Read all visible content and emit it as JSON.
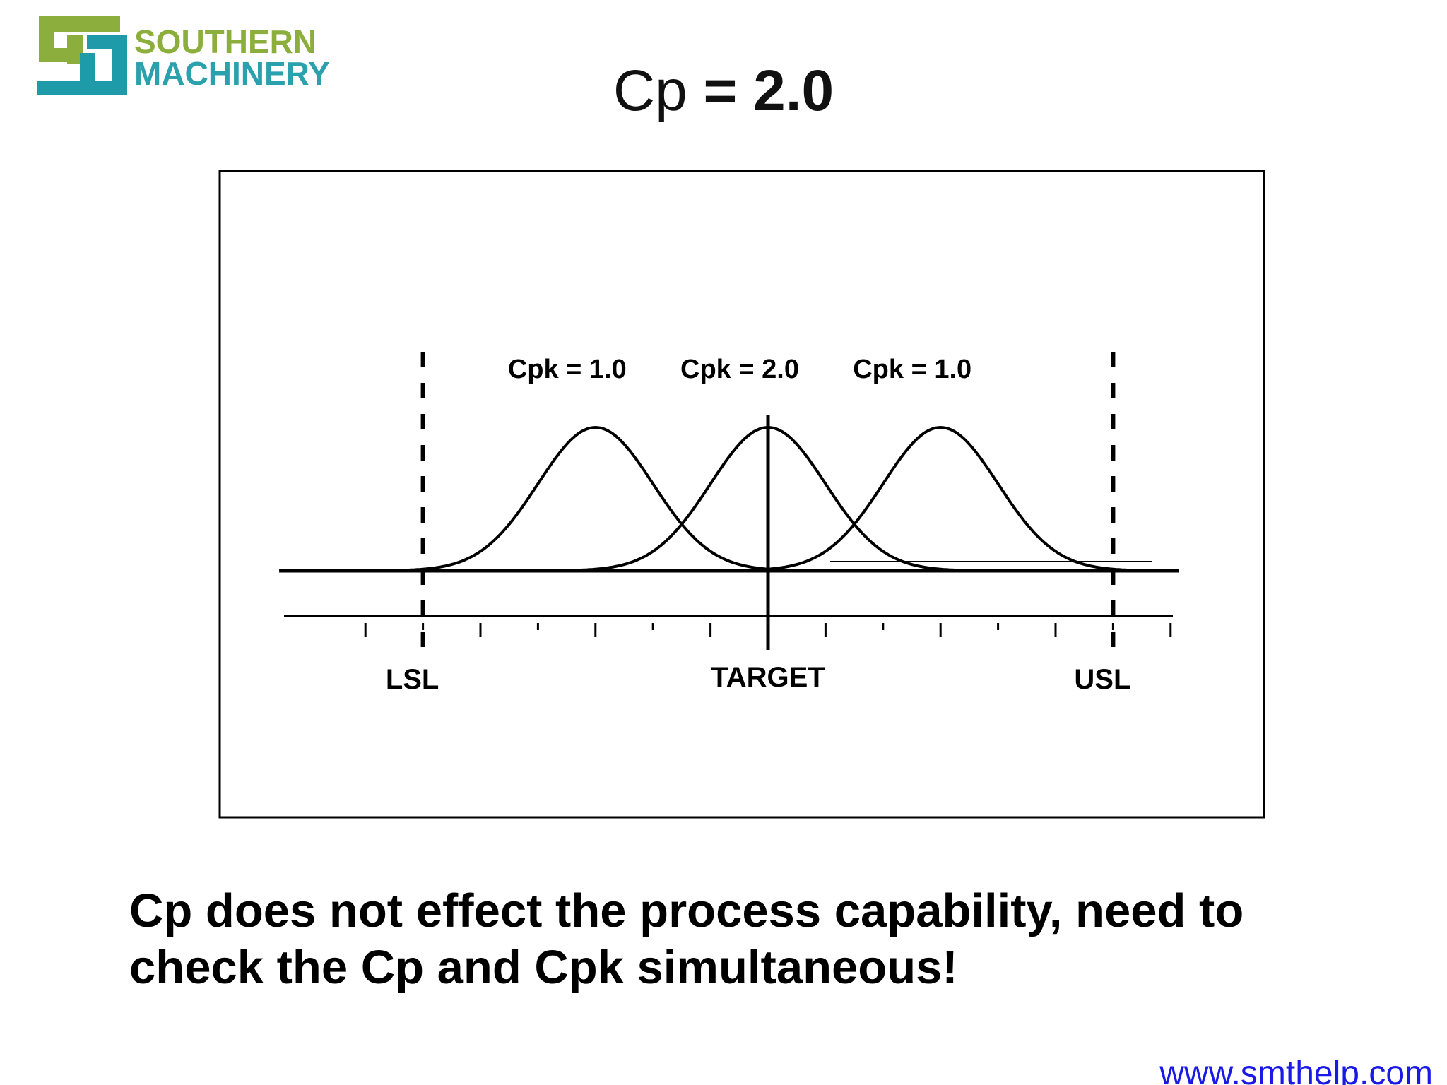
{
  "logo": {
    "line1": "SOUTHERN",
    "line2": "MACHINERY",
    "text_color": "#2aa1ad",
    "mark_green": "#8cae3c",
    "mark_teal": "#1f9aa8"
  },
  "title": {
    "prefix": "Cp ",
    "value": "= 2.0"
  },
  "diagram": {
    "curves": [
      {
        "label": "Cpk = 1.0",
        "mean": -3,
        "sd": 1
      },
      {
        "label": "Cpk = 2.0",
        "mean": 0,
        "sd": 1
      },
      {
        "label": "Cpk = 1.0",
        "mean": 3,
        "sd": 1
      }
    ],
    "limits": {
      "lsl": {
        "label": "LSL",
        "value": -6
      },
      "target": {
        "label": "TARGET",
        "value": 0
      },
      "usl": {
        "label": "USL",
        "value": 6
      }
    },
    "axis_range": [
      -8.5,
      7.0
    ]
  },
  "caption": {
    "line1": "Cp does not effect the process capability, need to",
    "line2": "check the Cp and Cpk simultaneous!"
  },
  "footer": {
    "url_text": "www.smthelp.com",
    "link_color": "#1a1ae6"
  }
}
